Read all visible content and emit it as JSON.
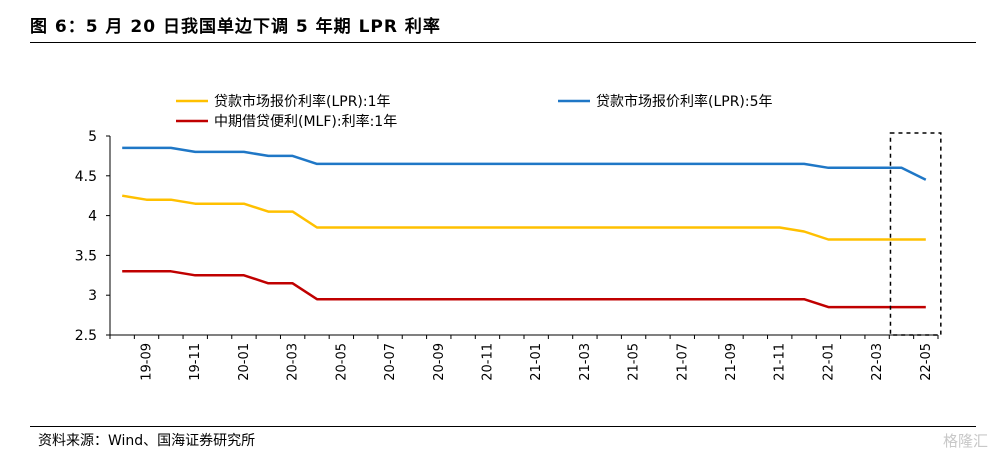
{
  "header": {
    "title": "图 6：5 月 20 日我国单边下调 5 年期 LPR 利率"
  },
  "footer": {
    "source": "资料来源：Wind、国海证券研究所",
    "watermark": "格隆汇"
  },
  "colors": {
    "lpr_1y": "#FFC000",
    "lpr_5y": "#1F77C6",
    "mlf_1y": "#C00000",
    "axis": "#000000"
  },
  "chart_data": {
    "type": "line",
    "ylim": [
      2.5,
      5
    ],
    "yticks": [
      "5",
      "4.5",
      "4",
      "3.5",
      "3",
      "2.5"
    ],
    "yticks_values": [
      5,
      4.5,
      4,
      3.5,
      3,
      2.5
    ],
    "xtick_labels": [
      "19-09",
      "19-11",
      "20-01",
      "20-03",
      "20-05",
      "20-07",
      "20-09",
      "20-11",
      "21-01",
      "21-03",
      "21-05",
      "21-07",
      "21-09",
      "21-11",
      "22-01",
      "22-03",
      "22-05"
    ],
    "x": [
      "19-08",
      "19-09",
      "19-10",
      "19-11",
      "19-12",
      "20-01",
      "20-02",
      "20-03",
      "20-04",
      "20-05",
      "20-06",
      "20-07",
      "20-08",
      "20-09",
      "20-10",
      "20-11",
      "20-12",
      "21-01",
      "21-02",
      "21-03",
      "21-04",
      "21-05",
      "21-06",
      "21-07",
      "21-08",
      "21-09",
      "21-10",
      "21-11",
      "21-12",
      "22-01",
      "22-02",
      "22-03",
      "22-04",
      "22-05"
    ],
    "legend": {
      "lpr_1y": "贷款市场报价利率(LPR):1年",
      "lpr_5y": "贷款市场报价利率(LPR):5年",
      "mlf_1y": "中期借贷便利(MLF):利率:1年"
    },
    "series": [
      {
        "key": "lpr_1y",
        "name": "贷款市场报价利率(LPR):1年",
        "values": [
          4.25,
          4.2,
          4.2,
          4.15,
          4.15,
          4.15,
          4.05,
          4.05,
          3.85,
          3.85,
          3.85,
          3.85,
          3.85,
          3.85,
          3.85,
          3.85,
          3.85,
          3.85,
          3.85,
          3.85,
          3.85,
          3.85,
          3.85,
          3.85,
          3.85,
          3.85,
          3.85,
          3.85,
          3.8,
          3.7,
          3.7,
          3.7,
          3.7,
          3.7
        ]
      },
      {
        "key": "lpr_5y",
        "name": "贷款市场报价利率(LPR):5年",
        "values": [
          4.85,
          4.85,
          4.85,
          4.8,
          4.8,
          4.8,
          4.75,
          4.75,
          4.65,
          4.65,
          4.65,
          4.65,
          4.65,
          4.65,
          4.65,
          4.65,
          4.65,
          4.65,
          4.65,
          4.65,
          4.65,
          4.65,
          4.65,
          4.65,
          4.65,
          4.65,
          4.65,
          4.65,
          4.65,
          4.6,
          4.6,
          4.6,
          4.6,
          4.45
        ]
      },
      {
        "key": "mlf_1y",
        "name": "中期借贷便利(MLF):利率:1年",
        "values": [
          3.3,
          3.3,
          3.3,
          3.25,
          3.25,
          3.25,
          3.15,
          3.15,
          2.95,
          2.95,
          2.95,
          2.95,
          2.95,
          2.95,
          2.95,
          2.95,
          2.95,
          2.95,
          2.95,
          2.95,
          2.95,
          2.95,
          2.95,
          2.95,
          2.95,
          2.95,
          2.95,
          2.95,
          2.95,
          2.85,
          2.85,
          2.85,
          2.85,
          2.85
        ]
      }
    ],
    "highlight": {
      "from": "22-04",
      "to": "22-05",
      "style": "dashed-box"
    }
  }
}
